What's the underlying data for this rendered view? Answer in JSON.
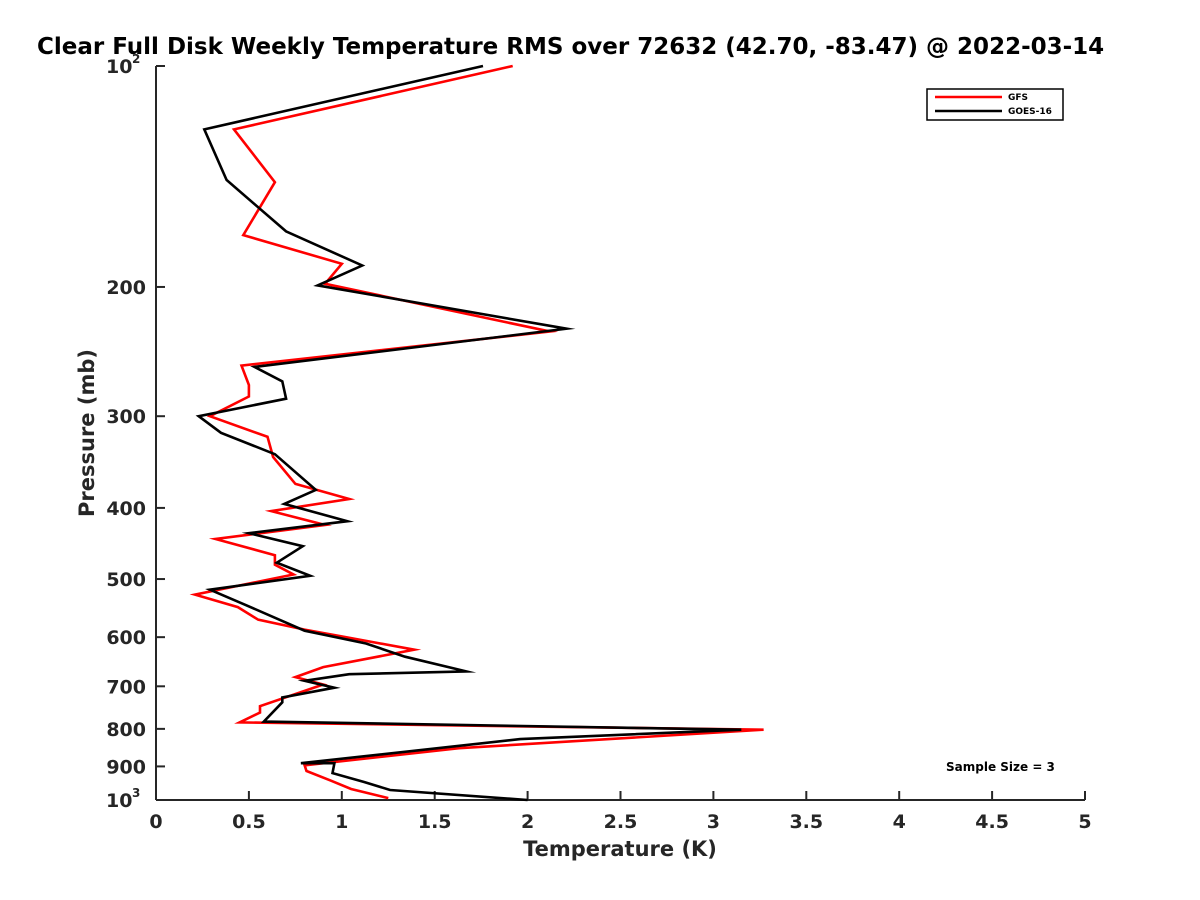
{
  "chart_data": {
    "type": "line",
    "title": "Clear Full Disk Weekly Temperature RMS over 72632 (42.70, -83.47) @ 2022-03-14",
    "xlabel": "Temperature (K)",
    "ylabel": "Pressure (mb)",
    "xlim": [
      0,
      5
    ],
    "ylim": [
      100,
      1000
    ],
    "yscale": "log",
    "y_reversed": true,
    "x_ticks": [
      "0",
      "0.5",
      "1",
      "1.5",
      "2",
      "2.5",
      "3",
      "3.5",
      "4",
      "4.5",
      "5"
    ],
    "y_ticks": [
      {
        "value": 100,
        "label": "10",
        "sup": "2"
      },
      {
        "value": 200,
        "label": "200"
      },
      {
        "value": 300,
        "label": "300"
      },
      {
        "value": 400,
        "label": "400"
      },
      {
        "value": 500,
        "label": "500"
      },
      {
        "value": 600,
        "label": "600"
      },
      {
        "value": 700,
        "label": "700"
      },
      {
        "value": 800,
        "label": "800"
      },
      {
        "value": 900,
        "label": "900"
      },
      {
        "value": 1000,
        "label": "10",
        "sup": "3"
      }
    ],
    "grid": false,
    "legend_position": "top-right",
    "annotation": "Sample Size = 3",
    "series": [
      {
        "name": "GFS",
        "color": "#ff0000",
        "x": [
          1.92,
          0.42,
          0.64,
          0.47,
          1.0,
          0.91,
          2.12,
          0.46,
          0.5,
          0.5,
          0.29,
          0.6,
          0.63,
          0.75,
          1.04,
          0.62,
          0.91,
          0.32,
          0.64,
          0.64,
          0.74,
          0.21,
          0.44,
          0.55,
          0.8,
          1.39,
          0.9,
          0.75,
          0.9,
          0.56,
          0.56,
          0.45,
          3.27,
          1.63,
          0.8,
          0.81,
          0.94,
          1.05,
          1.25
        ],
        "y": [
          100,
          122,
          144,
          170,
          186,
          198,
          230,
          256,
          272,
          282,
          300,
          320,
          341,
          371,
          389,
          404,
          422,
          441,
          464,
          478,
          493,
          525,
          546,
          568,
          586,
          624,
          659,
          680,
          696,
          745,
          760,
          784,
          802,
          850,
          897,
          913,
          941,
          966,
          994
        ]
      },
      {
        "name": "GOES-16",
        "color": "#000000",
        "x": [
          1.76,
          0.26,
          0.38,
          0.7,
          1.11,
          0.87,
          2.21,
          0.53,
          0.68,
          0.7,
          0.23,
          0.35,
          0.64,
          0.86,
          0.69,
          1.03,
          0.5,
          0.79,
          0.65,
          0.83,
          0.29,
          0.48,
          0.8,
          1.13,
          1.34,
          1.67,
          1.04,
          0.8,
          0.96,
          0.68,
          0.68,
          0.58,
          3.15,
          1.96,
          0.78,
          0.96,
          0.95,
          1.12,
          1.26,
          2.0
        ],
        "y": [
          100,
          122,
          143,
          168,
          187,
          199,
          228,
          257,
          269,
          284,
          300,
          316,
          338,
          378,
          395,
          417,
          433,
          451,
          475,
          495,
          517,
          542,
          588,
          612,
          638,
          668,
          674,
          688,
          703,
          725,
          736,
          782,
          802,
          826,
          891,
          891,
          919,
          945,
          969,
          1000
        ]
      }
    ]
  }
}
